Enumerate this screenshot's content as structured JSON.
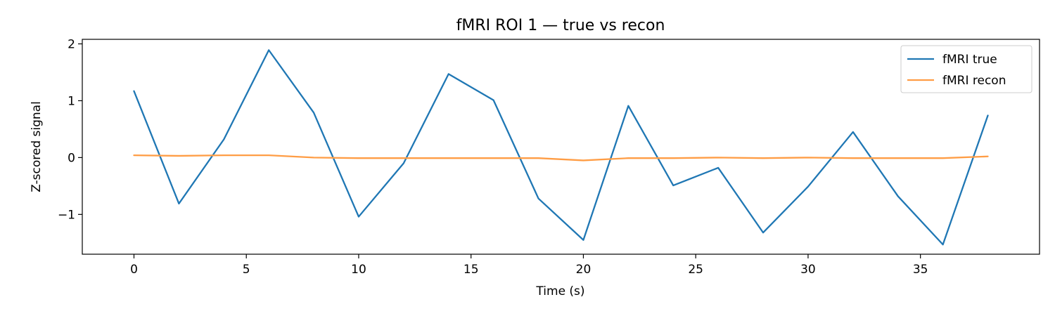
{
  "chart_data": {
    "type": "line",
    "title": "fMRI ROI 1 — true vs recon",
    "xlabel": "Time (s)",
    "ylabel": "Z-scored signal",
    "xlim": [
      -2.3,
      40.3
    ],
    "ylim": [
      -1.7,
      2.08
    ],
    "xticks": [
      0,
      5,
      10,
      15,
      20,
      25,
      30,
      35
    ],
    "xtick_labels": [
      "0",
      "5",
      "10",
      "15",
      "20",
      "25",
      "30",
      "35"
    ],
    "yticks": [
      -1,
      0,
      1,
      2
    ],
    "ytick_labels": [
      "−1",
      "0",
      "1",
      "2"
    ],
    "grid": false,
    "legend_position": "top-right",
    "x": [
      0,
      2,
      4,
      6,
      8,
      10,
      12,
      14,
      16,
      18,
      20,
      22,
      24,
      26,
      28,
      30,
      32,
      34,
      36,
      38
    ],
    "series": [
      {
        "name": "fMRI true",
        "color": "#1f77b4",
        "values": [
          1.17,
          -0.81,
          0.32,
          1.89,
          0.79,
          -1.04,
          -0.1,
          1.47,
          1.01,
          -0.72,
          -1.45,
          0.91,
          -0.49,
          -0.18,
          -1.32,
          -0.51,
          0.45,
          -0.68,
          -1.53,
          0.74
        ]
      },
      {
        "name": "fMRI recon",
        "color": "#ff9d45",
        "values": [
          0.04,
          0.03,
          0.04,
          0.04,
          0.0,
          -0.01,
          -0.01,
          -0.01,
          -0.01,
          -0.01,
          -0.05,
          -0.01,
          -0.01,
          0.0,
          -0.01,
          0.0,
          -0.01,
          -0.01,
          -0.01,
          0.02
        ]
      }
    ]
  }
}
